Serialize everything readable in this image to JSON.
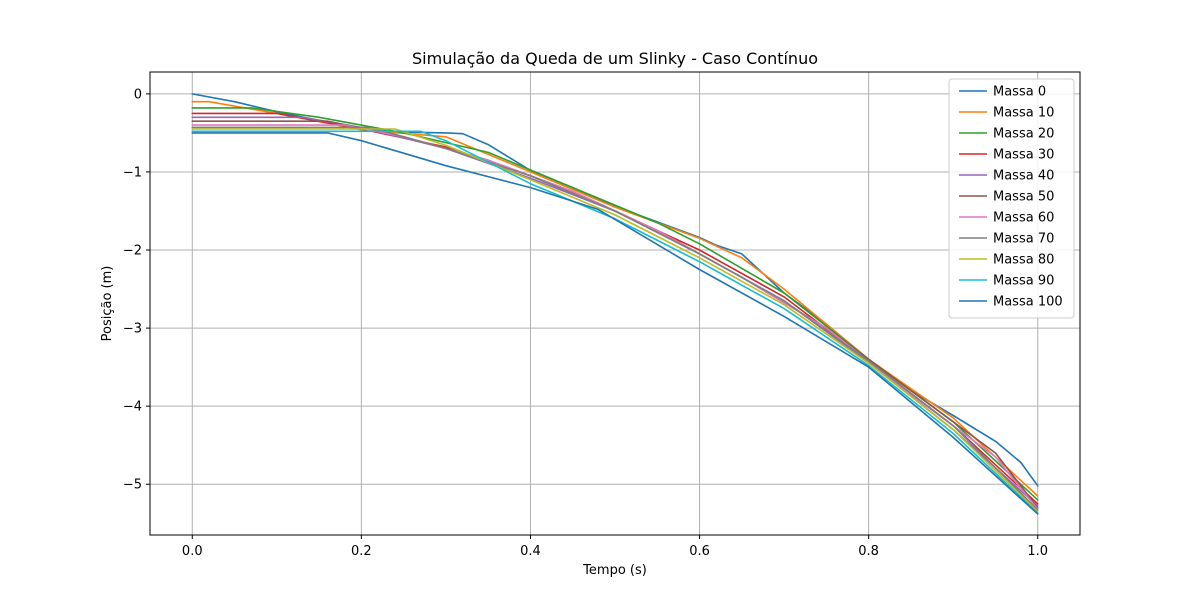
{
  "chart_data": {
    "type": "line",
    "title": "Simulação da Queda de um Slinky - Caso Contínuo",
    "xlabel": "Tempo (s)",
    "ylabel": "Posição (m)",
    "xlim": [
      -0.05,
      1.05
    ],
    "ylim": [
      -5.65,
      0.28
    ],
    "xticks": [
      0.0,
      0.2,
      0.4,
      0.6,
      0.8,
      1.0
    ],
    "xtick_labels": [
      "0.0",
      "0.2",
      "0.4",
      "0.6",
      "0.8",
      "1.0"
    ],
    "yticks": [
      0,
      -1,
      -2,
      -3,
      -4,
      -5
    ],
    "ytick_labels": [
      "0",
      "−1",
      "−2",
      "−3",
      "−4",
      "−5"
    ],
    "grid": true,
    "legend_position": "top-right",
    "series": [
      {
        "name": "Massa 0",
        "color": "#1f77b4",
        "points": [
          [
            0.0,
            0.0
          ],
          [
            0.05,
            -0.1
          ],
          [
            0.1,
            -0.23
          ],
          [
            0.15,
            -0.34
          ],
          [
            0.2,
            -0.44
          ],
          [
            0.25,
            -0.49
          ],
          [
            0.3,
            -0.5
          ],
          [
            0.32,
            -0.51
          ],
          [
            0.35,
            -0.65
          ],
          [
            0.4,
            -0.98
          ],
          [
            0.45,
            -1.2
          ],
          [
            0.5,
            -1.44
          ],
          [
            0.55,
            -1.64
          ],
          [
            0.6,
            -1.84
          ],
          [
            0.62,
            -1.94
          ],
          [
            0.65,
            -2.05
          ],
          [
            0.7,
            -2.55
          ],
          [
            0.75,
            -2.95
          ],
          [
            0.8,
            -3.4
          ],
          [
            0.85,
            -3.8
          ],
          [
            0.9,
            -4.12
          ],
          [
            0.95,
            -4.45
          ],
          [
            0.98,
            -4.72
          ],
          [
            1.0,
            -5.02
          ]
        ]
      },
      {
        "name": "Massa 10",
        "color": "#ff7f0e",
        "points": [
          [
            0.0,
            -0.1
          ],
          [
            0.02,
            -0.1
          ],
          [
            0.1,
            -0.25
          ],
          [
            0.2,
            -0.46
          ],
          [
            0.3,
            -0.55
          ],
          [
            0.4,
            -1.0
          ],
          [
            0.5,
            -1.45
          ],
          [
            0.6,
            -1.85
          ],
          [
            0.65,
            -2.1
          ],
          [
            0.7,
            -2.5
          ],
          [
            0.8,
            -3.4
          ],
          [
            0.9,
            -4.15
          ],
          [
            1.0,
            -5.15
          ]
        ]
      },
      {
        "name": "Massa 20",
        "color": "#2ca02c",
        "points": [
          [
            0.0,
            -0.18
          ],
          [
            0.07,
            -0.18
          ],
          [
            0.15,
            -0.3
          ],
          [
            0.25,
            -0.5
          ],
          [
            0.35,
            -0.75
          ],
          [
            0.45,
            -1.2
          ],
          [
            0.55,
            -1.65
          ],
          [
            0.6,
            -1.92
          ],
          [
            0.7,
            -2.55
          ],
          [
            0.8,
            -3.4
          ],
          [
            0.9,
            -4.2
          ],
          [
            1.0,
            -5.2
          ]
        ]
      },
      {
        "name": "Massa 30",
        "color": "#d62728",
        "points": [
          [
            0.0,
            -0.25
          ],
          [
            0.1,
            -0.25
          ],
          [
            0.2,
            -0.45
          ],
          [
            0.3,
            -0.68
          ],
          [
            0.4,
            -1.05
          ],
          [
            0.5,
            -1.5
          ],
          [
            0.6,
            -2.0
          ],
          [
            0.7,
            -2.6
          ],
          [
            0.8,
            -3.42
          ],
          [
            0.9,
            -4.25
          ],
          [
            1.0,
            -5.25
          ]
        ]
      },
      {
        "name": "Massa 40",
        "color": "#9467bd",
        "points": [
          [
            0.0,
            -0.3
          ],
          [
            0.13,
            -0.3
          ],
          [
            0.2,
            -0.43
          ],
          [
            0.3,
            -0.7
          ],
          [
            0.4,
            -1.08
          ],
          [
            0.5,
            -1.5
          ],
          [
            0.6,
            -2.05
          ],
          [
            0.7,
            -2.65
          ],
          [
            0.8,
            -3.44
          ],
          [
            0.9,
            -4.3
          ],
          [
            1.0,
            -5.28
          ]
        ]
      },
      {
        "name": "Massa 50",
        "color": "#8c564b",
        "points": [
          [
            0.0,
            -0.35
          ],
          [
            0.16,
            -0.35
          ],
          [
            0.25,
            -0.55
          ],
          [
            0.35,
            -0.85
          ],
          [
            0.45,
            -1.25
          ],
          [
            0.55,
            -1.75
          ],
          [
            0.65,
            -2.35
          ],
          [
            0.75,
            -3.0
          ],
          [
            0.85,
            -3.8
          ],
          [
            0.95,
            -4.6
          ],
          [
            1.0,
            -5.3
          ]
        ]
      },
      {
        "name": "Massa 60",
        "color": "#e377c2",
        "points": [
          [
            0.0,
            -0.4
          ],
          [
            0.18,
            -0.4
          ],
          [
            0.25,
            -0.55
          ],
          [
            0.35,
            -0.85
          ],
          [
            0.45,
            -1.25
          ],
          [
            0.55,
            -1.75
          ],
          [
            0.65,
            -2.35
          ],
          [
            0.75,
            -3.0
          ],
          [
            0.85,
            -3.85
          ],
          [
            0.95,
            -4.65
          ],
          [
            1.0,
            -5.32
          ]
        ]
      },
      {
        "name": "Massa 70",
        "color": "#7f7f7f",
        "points": [
          [
            0.0,
            -0.43
          ],
          [
            0.21,
            -0.43
          ],
          [
            0.3,
            -0.7
          ],
          [
            0.4,
            -1.05
          ],
          [
            0.5,
            -1.5
          ],
          [
            0.6,
            -2.05
          ],
          [
            0.7,
            -2.65
          ],
          [
            0.8,
            -3.42
          ],
          [
            0.9,
            -4.25
          ],
          [
            1.0,
            -5.33
          ]
        ]
      },
      {
        "name": "Massa 80",
        "color": "#bcbd22",
        "points": [
          [
            0.0,
            -0.45
          ],
          [
            0.24,
            -0.45
          ],
          [
            0.3,
            -0.66
          ],
          [
            0.4,
            -1.1
          ],
          [
            0.5,
            -1.55
          ],
          [
            0.6,
            -2.1
          ],
          [
            0.7,
            -2.7
          ],
          [
            0.8,
            -3.45
          ],
          [
            0.9,
            -4.3
          ],
          [
            1.0,
            -5.35
          ]
        ]
      },
      {
        "name": "Massa 90",
        "color": "#17becf",
        "points": [
          [
            0.0,
            -0.48
          ],
          [
            0.27,
            -0.48
          ],
          [
            0.3,
            -0.6
          ],
          [
            0.4,
            -1.15
          ],
          [
            0.5,
            -1.6
          ],
          [
            0.6,
            -2.15
          ],
          [
            0.7,
            -2.75
          ],
          [
            0.8,
            -3.48
          ],
          [
            0.9,
            -4.35
          ],
          [
            1.0,
            -5.37
          ]
        ]
      },
      {
        "name": "Massa 100",
        "color": "#1f77b4",
        "points": [
          [
            0.0,
            -0.5
          ],
          [
            0.16,
            -0.5
          ],
          [
            0.2,
            -0.6
          ],
          [
            0.3,
            -0.92
          ],
          [
            0.4,
            -1.2
          ],
          [
            0.48,
            -1.48
          ],
          [
            0.6,
            -2.25
          ],
          [
            0.7,
            -2.85
          ],
          [
            0.8,
            -3.5
          ],
          [
            0.9,
            -4.4
          ],
          [
            1.0,
            -5.38
          ]
        ]
      }
    ]
  }
}
